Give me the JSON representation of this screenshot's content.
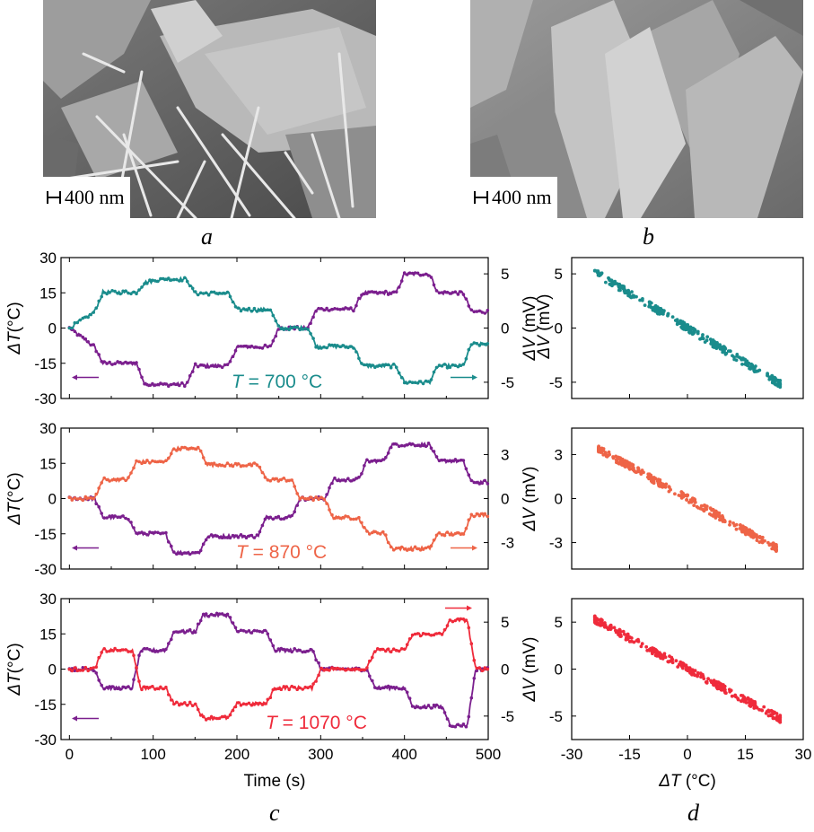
{
  "images": [
    {
      "label": "a",
      "scale_bar": "400 nm",
      "description_name": "sem-image-a"
    },
    {
      "label": "b",
      "scale_bar": "400 nm",
      "description_name": "sem-image-b"
    }
  ],
  "panel_labels": {
    "c": "c",
    "d": "d"
  },
  "colors": {
    "purple": "#7b1f8e",
    "teal": "#1a8c8c",
    "orange": "#ee6447",
    "red": "#ef2b3b"
  },
  "chart_data": [
    {
      "type": "line",
      "id": "c1",
      "annotation": {
        "T": "T",
        "rest": " = 700 °C"
      },
      "ylabel_left": {
        "sym": "ΔT",
        "unit": "(°C)"
      },
      "ylabel_right": {
        "sym": "ΔV",
        "unit": "(mV)"
      },
      "xlim": [
        -10,
        500
      ],
      "ylim_left": [
        -30,
        30
      ],
      "ylim_right": [
        -6.5,
        6.5
      ],
      "left_ticks": [
        "30",
        "15",
        "0",
        "-15",
        "-30"
      ],
      "right_ticks": [
        "5",
        "0",
        "-5"
      ],
      "series": [
        {
          "name": "ΔT",
          "axis": "left",
          "color": "#7b1f8e",
          "steps": [
            [
              0,
              0
            ],
            [
              30,
              -8
            ],
            [
              40,
              -15
            ],
            [
              80,
              -15
            ],
            [
              90,
              -24
            ],
            [
              110,
              -24
            ],
            [
              120,
              -24
            ],
            [
              140,
              -24
            ],
            [
              150,
              -16
            ],
            [
              190,
              -16
            ],
            [
              200,
              -8
            ],
            [
              240,
              -8
            ],
            [
              250,
              0
            ],
            [
              285,
              0
            ],
            [
              295,
              8
            ],
            [
              340,
              8
            ],
            [
              350,
              15
            ],
            [
              390,
              15
            ],
            [
              400,
              23
            ],
            [
              430,
              23
            ],
            [
              440,
              15
            ],
            [
              470,
              15
            ],
            [
              480,
              7
            ],
            [
              500,
              7
            ]
          ]
        },
        {
          "name": "ΔV",
          "axis": "right",
          "color": "#1a8c8c",
          "steps": [
            [
              0,
              0
            ],
            [
              30,
              1.5
            ],
            [
              40,
              3.3
            ],
            [
              80,
              3.3
            ],
            [
              90,
              4.2
            ],
            [
              110,
              4.5
            ],
            [
              140,
              4.5
            ],
            [
              150,
              3.2
            ],
            [
              190,
              3.2
            ],
            [
              200,
              1.7
            ],
            [
              240,
              1.7
            ],
            [
              250,
              0
            ],
            [
              285,
              0
            ],
            [
              295,
              -1.7
            ],
            [
              340,
              -1.7
            ],
            [
              350,
              -3.5
            ],
            [
              390,
              -3.5
            ],
            [
              400,
              -5
            ],
            [
              430,
              -5
            ],
            [
              440,
              -3.5
            ],
            [
              470,
              -3.5
            ],
            [
              480,
              -1.5
            ],
            [
              500,
              -1.5
            ]
          ]
        }
      ],
      "left_arrow_series": "ΔT",
      "right_arrow_series": "ΔV"
    },
    {
      "type": "line",
      "id": "c2",
      "annotation": {
        "T": "T",
        "rest": " = 870 °C"
      },
      "ylabel_left": {
        "sym": "ΔT",
        "unit": "(°C)"
      },
      "ylabel_right": {
        "sym": "ΔV",
        "unit": "(mV)"
      },
      "xlim": [
        -10,
        500
      ],
      "ylim_left": [
        -30,
        30
      ],
      "ylim_right": [
        -4.8,
        4.8
      ],
      "left_ticks": [
        "30",
        "15",
        "0",
        "-15",
        "-30"
      ],
      "right_ticks": [
        "3",
        "0",
        "-3"
      ],
      "series": [
        {
          "name": "ΔT",
          "axis": "left",
          "color": "#7b1f8e",
          "steps": [
            [
              0,
              0
            ],
            [
              30,
              0
            ],
            [
              40,
              -8
            ],
            [
              70,
              -8
            ],
            [
              80,
              -15
            ],
            [
              115,
              -15
            ],
            [
              125,
              -23
            ],
            [
              155,
              -23
            ],
            [
              165,
              -16
            ],
            [
              225,
              -16
            ],
            [
              235,
              -8
            ],
            [
              265,
              -8
            ],
            [
              275,
              0
            ],
            [
              305,
              0
            ],
            [
              315,
              8
            ],
            [
              345,
              8
            ],
            [
              355,
              16
            ],
            [
              375,
              16
            ],
            [
              385,
              23
            ],
            [
              430,
              23
            ],
            [
              440,
              16
            ],
            [
              470,
              16
            ],
            [
              480,
              7
            ],
            [
              500,
              7
            ]
          ]
        },
        {
          "name": "ΔV",
          "axis": "right",
          "color": "#ee6447",
          "steps": [
            [
              0,
              0
            ],
            [
              30,
              0
            ],
            [
              40,
              1.3
            ],
            [
              70,
              1.3
            ],
            [
              80,
              2.5
            ],
            [
              115,
              2.5
            ],
            [
              125,
              3.4
            ],
            [
              155,
              3.4
            ],
            [
              165,
              2.3
            ],
            [
              225,
              2.3
            ],
            [
              235,
              1.3
            ],
            [
              265,
              1.3
            ],
            [
              275,
              0
            ],
            [
              305,
              0
            ],
            [
              315,
              -1.3
            ],
            [
              345,
              -1.3
            ],
            [
              355,
              -2.3
            ],
            [
              375,
              -2.3
            ],
            [
              385,
              -3.4
            ],
            [
              430,
              -3.4
            ],
            [
              440,
              -2.4
            ],
            [
              470,
              -2.4
            ],
            [
              480,
              -1.1
            ],
            [
              500,
              -1.1
            ]
          ]
        }
      ],
      "left_arrow_series": "ΔT",
      "right_arrow_series": "ΔV"
    },
    {
      "type": "line",
      "id": "c3",
      "annotation": {
        "T": "T",
        "rest": " = 1070 °C"
      },
      "ylabel_left": {
        "sym": "ΔT",
        "unit": "(°C)"
      },
      "ylabel_right": {
        "sym": "ΔV",
        "unit": "(mV)"
      },
      "xlabel": "Time (s)",
      "xlim": [
        -10,
        500
      ],
      "ylim_left": [
        -30,
        30
      ],
      "ylim_right": [
        -7.5,
        7.5
      ],
      "left_ticks": [
        "30",
        "15",
        "0",
        "-15",
        "-30"
      ],
      "right_ticks": [
        "5",
        "0",
        "-5"
      ],
      "x_ticks": [
        "0",
        "100",
        "200",
        "300",
        "400",
        "500"
      ],
      "series": [
        {
          "name": "ΔT",
          "axis": "left",
          "color": "#7b1f8e",
          "steps": [
            [
              0,
              0
            ],
            [
              30,
              0
            ],
            [
              40,
              -8
            ],
            [
              75,
              -8
            ],
            [
              85,
              8
            ],
            [
              115,
              8
            ],
            [
              125,
              16
            ],
            [
              150,
              16
            ],
            [
              160,
              23
            ],
            [
              190,
              23
            ],
            [
              200,
              16
            ],
            [
              235,
              16
            ],
            [
              245,
              8
            ],
            [
              290,
              8
            ],
            [
              300,
              0
            ],
            [
              355,
              0
            ],
            [
              365,
              -8
            ],
            [
              400,
              -8
            ],
            [
              410,
              -16
            ],
            [
              445,
              -16
            ],
            [
              455,
              -24
            ],
            [
              475,
              -24
            ],
            [
              485,
              0
            ],
            [
              500,
              0
            ]
          ]
        },
        {
          "name": "ΔV",
          "axis": "right",
          "color": "#ef2b3b",
          "steps": [
            [
              0,
              0
            ],
            [
              30,
              0
            ],
            [
              40,
              2
            ],
            [
              75,
              2
            ],
            [
              85,
              -2
            ],
            [
              115,
              -2
            ],
            [
              125,
              -3.7
            ],
            [
              150,
              -3.7
            ],
            [
              160,
              -5.2
            ],
            [
              190,
              -5.2
            ],
            [
              200,
              -3.7
            ],
            [
              235,
              -3.7
            ],
            [
              245,
              -2
            ],
            [
              290,
              -2
            ],
            [
              300,
              0
            ],
            [
              355,
              0
            ],
            [
              365,
              2
            ],
            [
              400,
              2
            ],
            [
              410,
              3.7
            ],
            [
              445,
              3.7
            ],
            [
              455,
              5.2
            ],
            [
              475,
              5.2
            ],
            [
              485,
              0
            ],
            [
              500,
              0
            ]
          ]
        }
      ],
      "left_arrow_series": "ΔT",
      "right_arrow_series": "ΔV"
    },
    {
      "type": "scatter",
      "id": "d1",
      "color": "#1a8c8c",
      "xlim": [
        -30,
        30
      ],
      "ylim": [
        -6.5,
        6.5
      ],
      "fit": {
        "slope": -0.214,
        "intercept": 0.0
      },
      "x_range": [
        -24,
        24
      ],
      "ylabel": {
        "sym": "ΔV",
        "unit": "(mV)"
      },
      "y_ticks": [
        "5",
        "0",
        "-5"
      ]
    },
    {
      "type": "scatter",
      "id": "d2",
      "color": "#ee6447",
      "xlim": [
        -30,
        30
      ],
      "ylim": [
        -4.8,
        4.8
      ],
      "fit": {
        "slope": -0.147,
        "intercept": 0.0
      },
      "x_range": [
        -23,
        23
      ],
      "y_ticks": [
        "3",
        "0",
        "-3"
      ]
    },
    {
      "type": "scatter",
      "id": "d3",
      "color": "#ef2b3b",
      "xlim": [
        -30,
        30
      ],
      "ylim": [
        -7.5,
        7.5
      ],
      "fit": {
        "slope": -0.22,
        "intercept": 0.0
      },
      "x_range": [
        -24,
        24
      ],
      "y_ticks": [
        "5",
        "0",
        "-5"
      ],
      "x_ticks": [
        "-30",
        "-15",
        "0",
        "15",
        "30"
      ],
      "xlabel": {
        "sym": "ΔT",
        "unit": " (°C)"
      }
    }
  ]
}
